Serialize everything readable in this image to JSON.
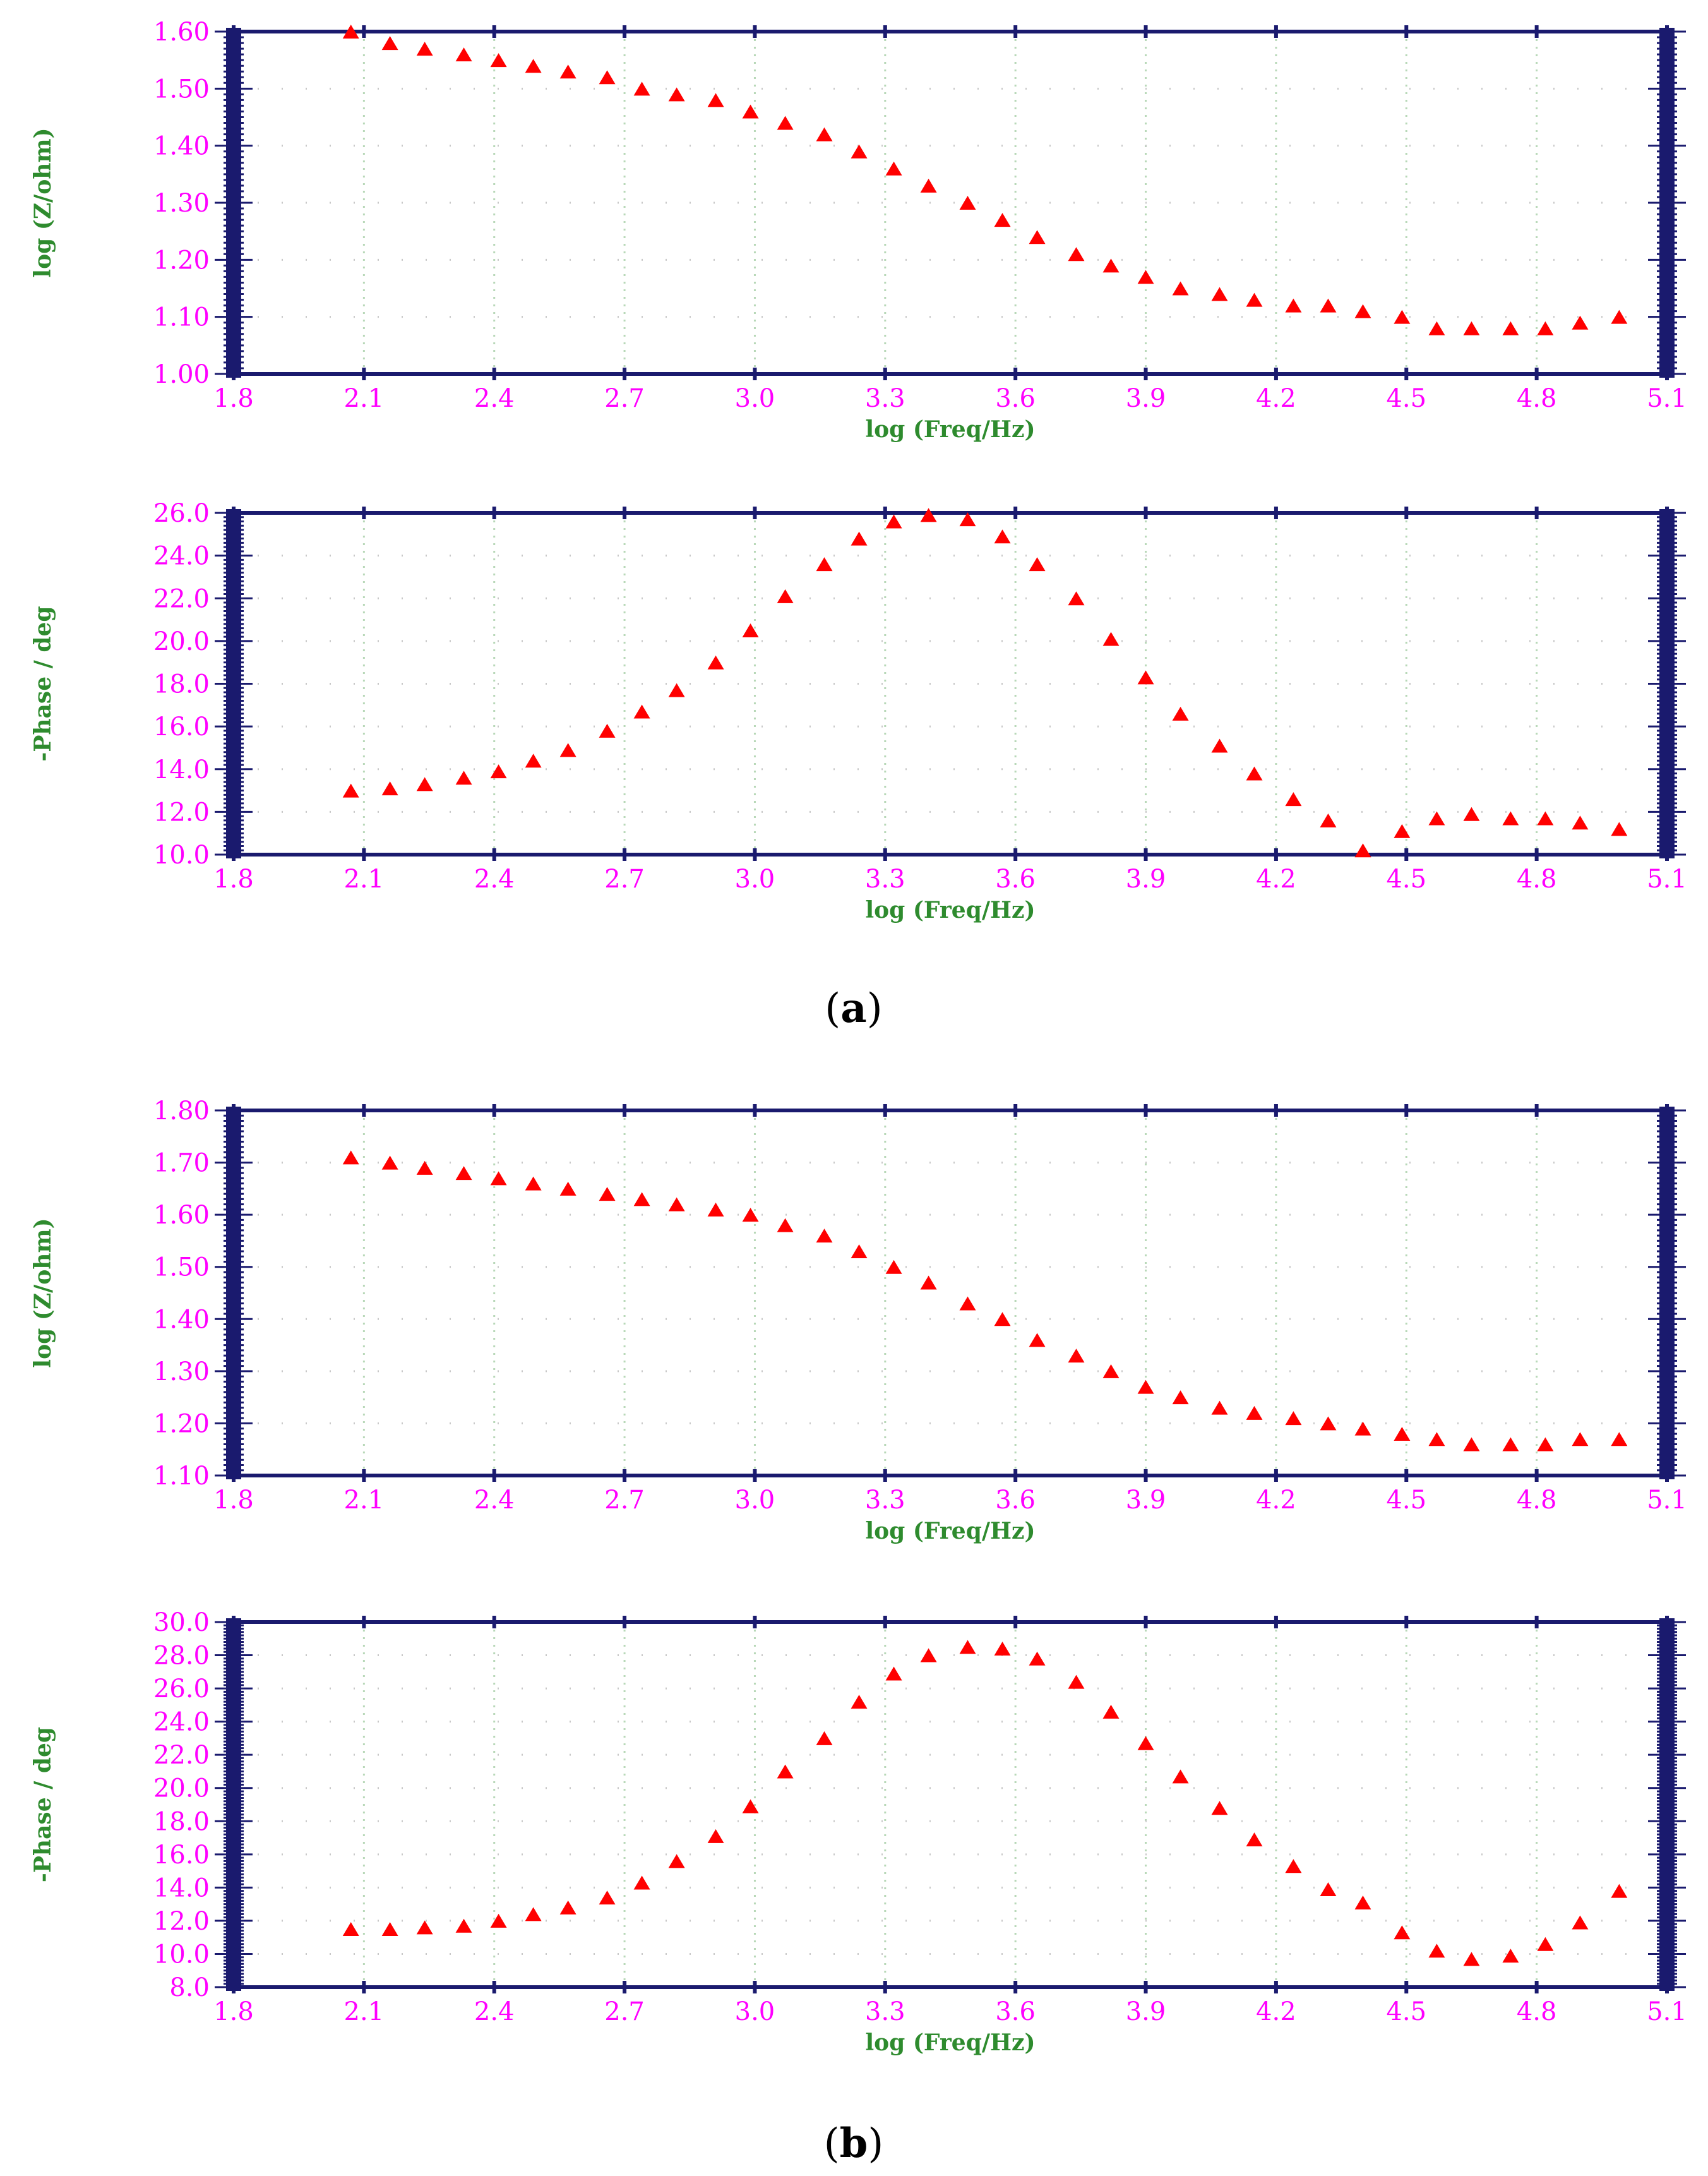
{
  "colors": {
    "frame": "#1a1a6e",
    "grid": "#b8d8b8",
    "tick_label": "#ff00ff",
    "axis_label": "#2e8b2e",
    "marker": "#ff0000"
  },
  "panels": [
    {
      "open": "(",
      "letter": "a",
      "close": ")"
    },
    {
      "open": "(",
      "letter": "b",
      "close": ")"
    }
  ],
  "chart_data": [
    {
      "panel": "a",
      "type": "scatter",
      "xlabel": "log (Freq/Hz)",
      "ylabel": "log (Z/ohm)",
      "xlim": [
        1.8,
        5.1
      ],
      "ylim": [
        1.0,
        1.6
      ],
      "x_ticks": [
        "1.8",
        "2.1",
        "2.4",
        "2.7",
        "3.0",
        "3.3",
        "3.6",
        "3.9",
        "4.2",
        "4.5",
        "4.8",
        "5.1"
      ],
      "y_ticks": [
        "1.00",
        "1.10",
        "1.20",
        "1.30",
        "1.40",
        "1.50",
        "1.60"
      ],
      "grid": true,
      "x": [
        2.07,
        2.16,
        2.24,
        2.33,
        2.41,
        2.49,
        2.57,
        2.66,
        2.74,
        2.82,
        2.91,
        2.99,
        3.07,
        3.16,
        3.24,
        3.32,
        3.4,
        3.49,
        3.57,
        3.65,
        3.74,
        3.82,
        3.9,
        3.98,
        4.07,
        4.15,
        4.24,
        4.32,
        4.4,
        4.49,
        4.57,
        4.65,
        4.74,
        4.82,
        4.9,
        4.99
      ],
      "y": [
        1.6,
        1.58,
        1.57,
        1.56,
        1.55,
        1.54,
        1.53,
        1.52,
        1.5,
        1.49,
        1.48,
        1.46,
        1.44,
        1.42,
        1.39,
        1.36,
        1.33,
        1.3,
        1.27,
        1.24,
        1.21,
        1.19,
        1.17,
        1.15,
        1.14,
        1.13,
        1.12,
        1.12,
        1.11,
        1.1,
        1.08,
        1.08,
        1.08,
        1.08,
        1.09,
        1.1
      ]
    },
    {
      "panel": "a",
      "type": "scatter",
      "xlabel": "log (Freq/Hz)",
      "ylabel": "-Phase / deg",
      "xlim": [
        1.8,
        5.1
      ],
      "ylim": [
        10.0,
        26.0
      ],
      "x_ticks": [
        "1.8",
        "2.1",
        "2.4",
        "2.7",
        "3.0",
        "3.3",
        "3.6",
        "3.9",
        "4.2",
        "4.5",
        "4.8",
        "5.1"
      ],
      "y_ticks": [
        "10.0",
        "12.0",
        "14.0",
        "16.0",
        "18.0",
        "20.0",
        "22.0",
        "24.0",
        "26.0"
      ],
      "grid": true,
      "x": [
        2.07,
        2.16,
        2.24,
        2.33,
        2.41,
        2.49,
        2.57,
        2.66,
        2.74,
        2.82,
        2.91,
        2.99,
        3.07,
        3.16,
        3.24,
        3.32,
        3.4,
        3.49,
        3.57,
        3.65,
        3.74,
        3.82,
        3.9,
        3.98,
        4.07,
        4.15,
        4.24,
        4.32,
        4.4,
        4.49,
        4.57,
        4.65,
        4.74,
        4.82,
        4.9,
        4.99
      ],
      "y": [
        13.0,
        13.1,
        13.3,
        13.6,
        13.9,
        14.4,
        14.9,
        15.8,
        16.7,
        17.7,
        19.0,
        20.5,
        22.1,
        23.6,
        24.8,
        25.6,
        25.9,
        25.7,
        24.9,
        23.6,
        22.0,
        20.1,
        18.3,
        16.6,
        15.1,
        13.8,
        12.6,
        11.6,
        10.2,
        11.1,
        11.7,
        11.9,
        11.7,
        11.7,
        11.5,
        11.2
      ]
    },
    {
      "panel": "b",
      "type": "scatter",
      "xlabel": "log (Freq/Hz)",
      "ylabel": "log (Z/ohm)",
      "xlim": [
        1.8,
        5.1
      ],
      "ylim": [
        1.1,
        1.8
      ],
      "x_ticks": [
        "1.8",
        "2.1",
        "2.4",
        "2.7",
        "3.0",
        "3.3",
        "3.6",
        "3.9",
        "4.2",
        "4.5",
        "4.8",
        "5.1"
      ],
      "y_ticks": [
        "1.10",
        "1.20",
        "1.30",
        "1.40",
        "1.50",
        "1.60",
        "1.70",
        "1.80"
      ],
      "grid": true,
      "x": [
        2.07,
        2.16,
        2.24,
        2.33,
        2.41,
        2.49,
        2.57,
        2.66,
        2.74,
        2.82,
        2.91,
        2.99,
        3.07,
        3.16,
        3.24,
        3.32,
        3.4,
        3.49,
        3.57,
        3.65,
        3.74,
        3.82,
        3.9,
        3.98,
        4.07,
        4.15,
        4.24,
        4.32,
        4.4,
        4.49,
        4.57,
        4.65,
        4.74,
        4.82,
        4.9,
        4.99
      ],
      "y": [
        1.71,
        1.7,
        1.69,
        1.68,
        1.67,
        1.66,
        1.65,
        1.64,
        1.63,
        1.62,
        1.61,
        1.6,
        1.58,
        1.56,
        1.53,
        1.5,
        1.47,
        1.43,
        1.4,
        1.36,
        1.33,
        1.3,
        1.27,
        1.25,
        1.23,
        1.22,
        1.21,
        1.2,
        1.19,
        1.18,
        1.17,
        1.16,
        1.16,
        1.16,
        1.17,
        1.17
      ]
    },
    {
      "panel": "b",
      "type": "scatter",
      "xlabel": "log (Freq/Hz)",
      "ylabel": "-Phase / deg",
      "xlim": [
        1.8,
        5.1
      ],
      "ylim": [
        8.0,
        30.0
      ],
      "x_ticks": [
        "1.8",
        "2.1",
        "2.4",
        "2.7",
        "3.0",
        "3.3",
        "3.6",
        "3.9",
        "4.2",
        "4.5",
        "4.8",
        "5.1"
      ],
      "y_ticks": [
        "8.0",
        "10.0",
        "12.0",
        "14.0",
        "16.0",
        "18.0",
        "20.0",
        "22.0",
        "24.0",
        "26.0",
        "28.0",
        "30.0"
      ],
      "grid": true,
      "x": [
        2.07,
        2.16,
        2.24,
        2.33,
        2.41,
        2.49,
        2.57,
        2.66,
        2.74,
        2.82,
        2.91,
        2.99,
        3.07,
        3.16,
        3.24,
        3.32,
        3.4,
        3.49,
        3.57,
        3.65,
        3.74,
        3.82,
        3.9,
        3.98,
        4.07,
        4.15,
        4.24,
        4.32,
        4.4,
        4.49,
        4.57,
        4.65,
        4.74,
        4.82,
        4.9,
        4.99
      ],
      "y": [
        11.5,
        11.5,
        11.6,
        11.7,
        12.0,
        12.4,
        12.8,
        13.4,
        14.3,
        15.6,
        17.1,
        18.9,
        21.0,
        23.0,
        25.2,
        26.9,
        28.0,
        28.5,
        28.4,
        27.8,
        26.4,
        24.6,
        22.7,
        20.7,
        18.8,
        16.9,
        15.3,
        13.9,
        13.1,
        11.3,
        10.2,
        9.7,
        9.9,
        10.6,
        11.9,
        13.8
      ]
    }
  ]
}
